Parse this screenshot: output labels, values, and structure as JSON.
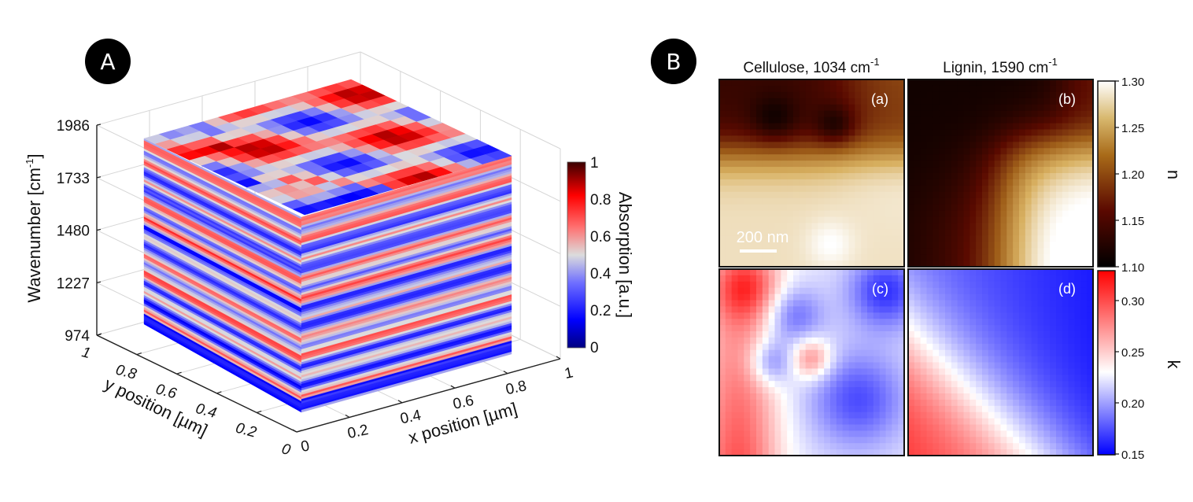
{
  "chart_data": [
    {
      "panel": "A",
      "type": "heatmap",
      "subtype": "3d-volume-slice-cube",
      "title": "",
      "xlabel": "x position [µm]",
      "ylabel": "y position [µm]",
      "zlabel": "Wavenumber [cm-1]",
      "zlabel_main": "Wavenumber [cm",
      "zlabel_sup": "-1",
      "zlabel_tail": "]",
      "x_ticks": [
        "0",
        "0.2",
        "0.4",
        "0.6",
        "0.8",
        "1"
      ],
      "y_ticks": [
        "0",
        "0.2",
        "0.4",
        "0.6",
        "0.8",
        "1"
      ],
      "z_ticks": [
        "974",
        "1227",
        "1480",
        "1733",
        "1986"
      ],
      "xlim": [
        0,
        1
      ],
      "ylim": [
        0,
        1
      ],
      "zlim": [
        974,
        1986
      ],
      "grid": true,
      "colorbar": {
        "label": "Absorption [a.u.]",
        "ticks": [
          "0",
          "0.2",
          "0.4",
          "0.6",
          "0.8",
          "1"
        ],
        "range": [
          0,
          1
        ],
        "colormap": [
          "#000080",
          "#0000ff",
          "#6666ff",
          "#dddddd",
          "#ff6666",
          "#ff0000",
          "#400000"
        ]
      }
    },
    {
      "panel": "B",
      "type": "heatmap",
      "maps": [
        {
          "id": "a",
          "label": "(a)",
          "column_title": "Cellulose, 1034 cm",
          "column_title_sup": "-1",
          "quantity": "n",
          "scale_bar": "200 nm"
        },
        {
          "id": "b",
          "label": "(b)",
          "column_title": "Lignin, 1590 cm",
          "column_title_sup": "-1",
          "quantity": "n"
        },
        {
          "id": "c",
          "label": "(c)",
          "quantity": "k"
        },
        {
          "id": "d",
          "label": "(d)",
          "quantity": "k"
        }
      ],
      "colorbar_n": {
        "label": "n",
        "ticks": [
          "1.10",
          "1.15",
          "1.20",
          "1.25",
          "1.30"
        ],
        "range": [
          1.1,
          1.3
        ],
        "colormap": [
          "#000000",
          "#5a0a00",
          "#a0601a",
          "#d8b060",
          "#ffffff"
        ]
      },
      "colorbar_k": {
        "label": "k",
        "ticks": [
          "0.15",
          "0.20",
          "0.25",
          "0.30"
        ],
        "range": [
          0.15,
          0.33
        ],
        "colormap": [
          "#0000ff",
          "#8080ff",
          "#ffffff",
          "#ff8080",
          "#ff0000"
        ]
      }
    }
  ],
  "badges": {
    "a": "A",
    "b": "B"
  }
}
